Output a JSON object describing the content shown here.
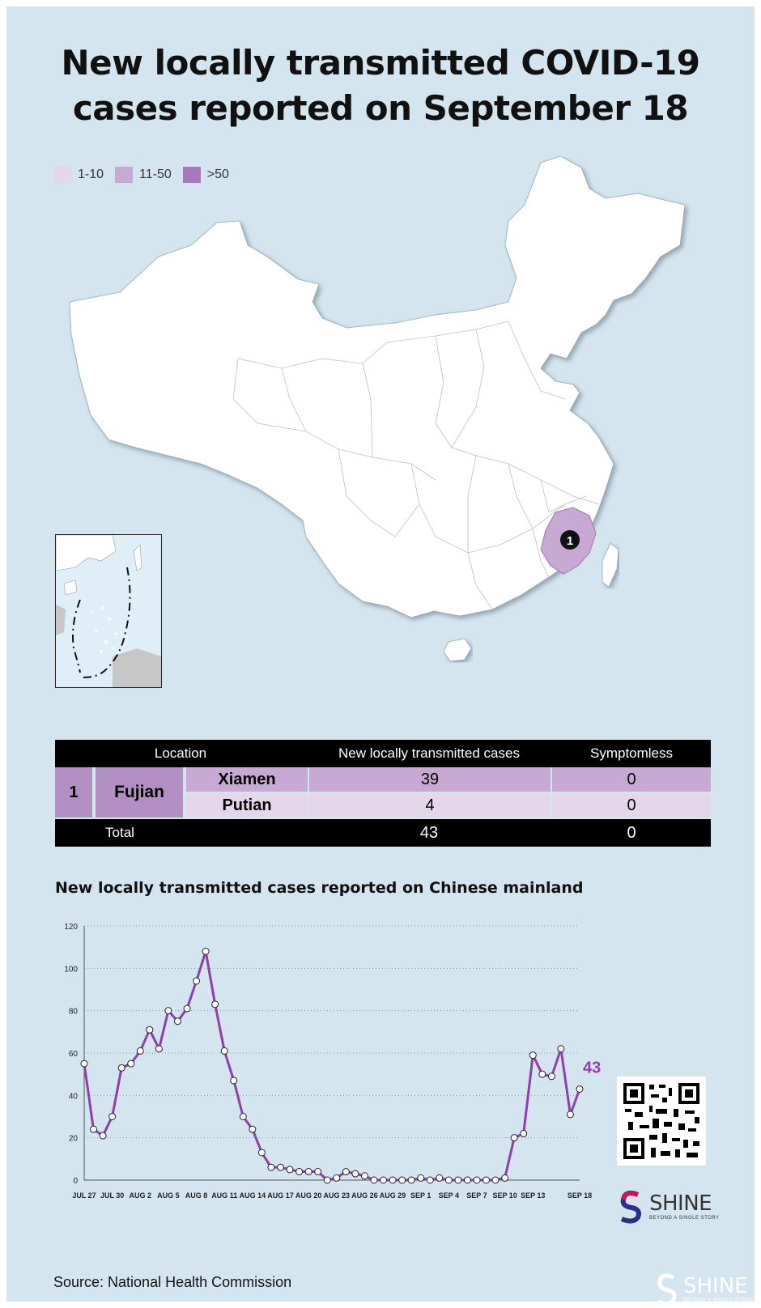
{
  "title": {
    "line1": "New locally transmitted COVID-19",
    "line2": "cases reported on September 18"
  },
  "legend": [
    {
      "label": "1-10",
      "color": "#e5d7ea"
    },
    {
      "label": "11-50",
      "color": "#c8a9d3"
    },
    {
      "label": ">50",
      "color": "#a877bd"
    }
  ],
  "map": {
    "marker_label": "1",
    "highlight_color": "#c8a9d3"
  },
  "table": {
    "header": {
      "location": "Location",
      "cases": "New locally transmitted cases",
      "symptomless": "Symptomless"
    },
    "index": "1",
    "province": "Fujian",
    "rows": [
      {
        "city": "Xiamen",
        "cases": "39",
        "symptomless": "0"
      },
      {
        "city": "Putian",
        "cases": "4",
        "symptomless": "0"
      }
    ],
    "total": {
      "label": "Total",
      "cases": "43",
      "symptomless": "0"
    }
  },
  "chart_data": {
    "type": "line",
    "title": "New locally transmitted cases reported on Chinese mainland",
    "x_tick_labels": [
      "JUL 27",
      "JUL 30",
      "AUG 2",
      "AUG 5",
      "AUG 8",
      "AUG 11",
      "AUG 14",
      "AUG 17",
      "AUG 20",
      "AUG 23",
      "AUG 26",
      "AUG 29",
      "SEP 1",
      "SEP 4",
      "SEP 7",
      "SEP 10",
      "SEP 13",
      "SEP 18"
    ],
    "y_ticks": [
      0,
      20,
      40,
      60,
      80,
      100,
      120
    ],
    "ylim": [
      0,
      120
    ],
    "grid": "horizontal dotted",
    "line_color": "#8e3fa8",
    "x_start": "JUL 27",
    "values": [
      55,
      24,
      21,
      30,
      53,
      55,
      61,
      71,
      62,
      80,
      75,
      81,
      94,
      108,
      83,
      61,
      47,
      30,
      24,
      13,
      6,
      6,
      5,
      4,
      4,
      4,
      0,
      1,
      4,
      3,
      2,
      0,
      0,
      0,
      0,
      0,
      1,
      0,
      1,
      0,
      0,
      0,
      0,
      0,
      0,
      1,
      20,
      22,
      59,
      50,
      49,
      62,
      31,
      43
    ],
    "end_label": "43"
  },
  "branding": {
    "shine_text": "SHINE",
    "shine_tagline": "BEYOND A SINGLE STORY"
  },
  "source": "Source: National Health Commission"
}
